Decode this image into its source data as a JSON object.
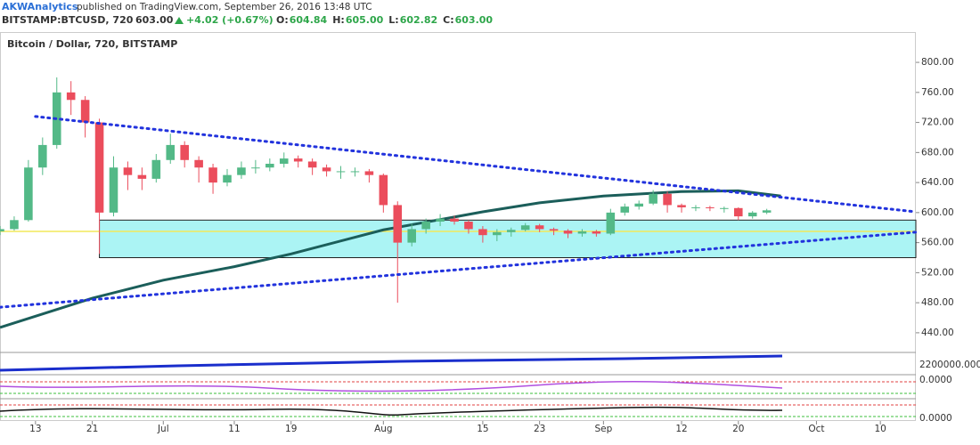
{
  "header": {
    "author": "AKWAnalytics",
    "published": "published on TradingView.com, September 26, 2016 13:48 UTC",
    "symbol": "BITSTAMP:BTCUSD, 720",
    "last": "603.00",
    "change": "+4.02 (+0.67%)",
    "quote": [
      {
        "label": "O:",
        "value": "604.84"
      },
      {
        "label": "H:",
        "value": "605.00"
      },
      {
        "label": "L:",
        "value": "602.82"
      },
      {
        "label": "C:",
        "value": "603.00"
      }
    ]
  },
  "indicator_labels": [
    "2200000.000",
    "0.0000",
    "0.0000"
  ],
  "chart_data": {
    "type": "candlestick",
    "title": "Bitcoin / Dollar, 720, BITSTAMP",
    "up_color": "#53b987",
    "down_color": "#eb4d5c",
    "x": [
      "2016-06-08",
      "2016-06-10",
      "2016-06-12",
      "2016-06-14",
      "2016-06-16",
      "2016-06-18",
      "2016-06-20",
      "2016-06-22",
      "2016-06-24",
      "2016-06-26",
      "2016-06-28",
      "2016-06-30",
      "2016-07-02",
      "2016-07-04",
      "2016-07-06",
      "2016-07-08",
      "2016-07-10",
      "2016-07-12",
      "2016-07-14",
      "2016-07-16",
      "2016-07-18",
      "2016-07-20",
      "2016-07-22",
      "2016-07-24",
      "2016-07-26",
      "2016-07-28",
      "2016-07-30",
      "2016-08-01",
      "2016-08-03",
      "2016-08-05",
      "2016-08-07",
      "2016-08-09",
      "2016-08-11",
      "2016-08-13",
      "2016-08-15",
      "2016-08-17",
      "2016-08-19",
      "2016-08-21",
      "2016-08-23",
      "2016-08-25",
      "2016-08-27",
      "2016-08-29",
      "2016-08-31",
      "2016-09-02",
      "2016-09-04",
      "2016-09-06",
      "2016-09-08",
      "2016-09-10",
      "2016-09-12",
      "2016-09-14",
      "2016-09-16",
      "2016-09-18",
      "2016-09-20",
      "2016-09-22",
      "2016-09-24"
    ],
    "candles": [
      [
        575,
        582,
        570,
        578
      ],
      [
        578,
        595,
        576,
        590
      ],
      [
        590,
        670,
        588,
        660
      ],
      [
        660,
        700,
        650,
        690
      ],
      [
        690,
        780,
        685,
        760
      ],
      [
        760,
        775,
        730,
        750
      ],
      [
        750,
        755,
        700,
        720
      ],
      [
        720,
        725,
        545,
        600
      ],
      [
        600,
        675,
        595,
        660
      ],
      [
        660,
        668,
        630,
        650
      ],
      [
        650,
        660,
        630,
        645
      ],
      [
        645,
        678,
        640,
        670
      ],
      [
        670,
        705,
        665,
        690
      ],
      [
        690,
        695,
        660,
        670
      ],
      [
        670,
        675,
        640,
        660
      ],
      [
        660,
        665,
        625,
        640
      ],
      [
        640,
        658,
        635,
        650
      ],
      [
        650,
        668,
        645,
        660
      ],
      [
        660,
        670,
        652,
        660
      ],
      [
        660,
        672,
        655,
        665
      ],
      [
        665,
        680,
        660,
        672
      ],
      [
        672,
        676,
        660,
        668
      ],
      [
        668,
        672,
        650,
        660
      ],
      [
        660,
        664,
        648,
        655
      ],
      [
        655,
        662,
        645,
        655
      ],
      [
        655,
        660,
        648,
        655
      ],
      [
        655,
        658,
        640,
        650
      ],
      [
        650,
        652,
        600,
        610
      ],
      [
        610,
        615,
        480,
        560
      ],
      [
        560,
        585,
        555,
        578
      ],
      [
        578,
        592,
        572,
        588
      ],
      [
        588,
        598,
        582,
        592
      ],
      [
        592,
        596,
        584,
        588
      ],
      [
        588,
        590,
        572,
        578
      ],
      [
        578,
        582,
        560,
        570
      ],
      [
        570,
        578,
        562,
        574
      ],
      [
        574,
        580,
        568,
        577
      ],
      [
        577,
        586,
        575,
        583
      ],
      [
        583,
        585,
        574,
        578
      ],
      [
        578,
        580,
        570,
        576
      ],
      [
        576,
        578,
        566,
        572
      ],
      [
        572,
        578,
        568,
        575
      ],
      [
        575,
        577,
        568,
        572
      ],
      [
        572,
        605,
        570,
        600
      ],
      [
        600,
        612,
        596,
        608
      ],
      [
        608,
        616,
        604,
        612
      ],
      [
        612,
        630,
        610,
        625
      ],
      [
        625,
        628,
        600,
        610
      ],
      [
        610,
        612,
        600,
        607
      ],
      [
        607,
        610,
        602,
        607
      ],
      [
        607,
        609,
        602,
        606
      ],
      [
        606,
        608,
        600,
        606
      ],
      [
        606,
        607,
        590,
        595
      ],
      [
        595,
        602,
        592,
        600
      ],
      [
        600,
        605,
        598,
        603
      ]
    ],
    "ma": {
      "color": "#1b5e5a",
      "x": [
        "2016-06-08",
        "2016-06-21",
        "2016-07-01",
        "2016-07-11",
        "2016-07-19",
        "2016-08-01",
        "2016-08-15",
        "2016-08-23",
        "2016-09-01",
        "2016-09-12",
        "2016-09-20",
        "2016-09-26"
      ],
      "values": [
        447,
        486,
        510,
        528,
        545,
        577,
        601,
        613,
        622,
        628,
        629,
        622
      ]
    },
    "zone": {
      "from": "2016-06-22",
      "low": 540,
      "high": 590,
      "color": "#8ff0f0"
    },
    "hline": {
      "value": 575,
      "color": "#f2e85a"
    },
    "trendlines": [
      {
        "from": [
          "2016-06-13",
          728
        ],
        "to": [
          "2016-10-15",
          601
        ],
        "color": "#2233dd"
      },
      {
        "from": [
          "2016-06-08",
          474
        ],
        "to": [
          "2016-10-15",
          574
        ],
        "color": "#2233dd"
      }
    ],
    "xlim": [
      "2016-06-08",
      "2016-10-15"
    ],
    "xticks": [
      {
        "value": "2016-06-13",
        "label": "13"
      },
      {
        "value": "2016-06-21",
        "label": "21"
      },
      {
        "value": "2016-07-01",
        "label": "Jul"
      },
      {
        "value": "2016-07-11",
        "label": "11"
      },
      {
        "value": "2016-07-19",
        "label": "19"
      },
      {
        "value": "2016-08-01",
        "label": "Aug"
      },
      {
        "value": "2016-08-15",
        "label": "15"
      },
      {
        "value": "2016-08-23",
        "label": "23"
      },
      {
        "value": "2016-09-01",
        "label": "Sep"
      },
      {
        "value": "2016-09-12",
        "label": "12"
      },
      {
        "value": "2016-09-20",
        "label": "20"
      },
      {
        "value": "2016-10-01",
        "label": "Oct"
      },
      {
        "value": "2016-10-10",
        "label": "10"
      }
    ],
    "ylim": [
      415,
      838
    ],
    "yticks": [
      {
        "value": 440,
        "label": "440.00"
      },
      {
        "value": 480,
        "label": "480.00"
      },
      {
        "value": 520,
        "label": "520.00"
      },
      {
        "value": 560,
        "label": "560.00"
      },
      {
        "value": 600,
        "label": "600.00"
      },
      {
        "value": 640,
        "label": "640.00"
      },
      {
        "value": 680,
        "label": "680.00"
      },
      {
        "value": 720,
        "label": "720.00"
      },
      {
        "value": 760,
        "label": "760.00"
      },
      {
        "value": 800,
        "label": "800.00"
      }
    ]
  }
}
